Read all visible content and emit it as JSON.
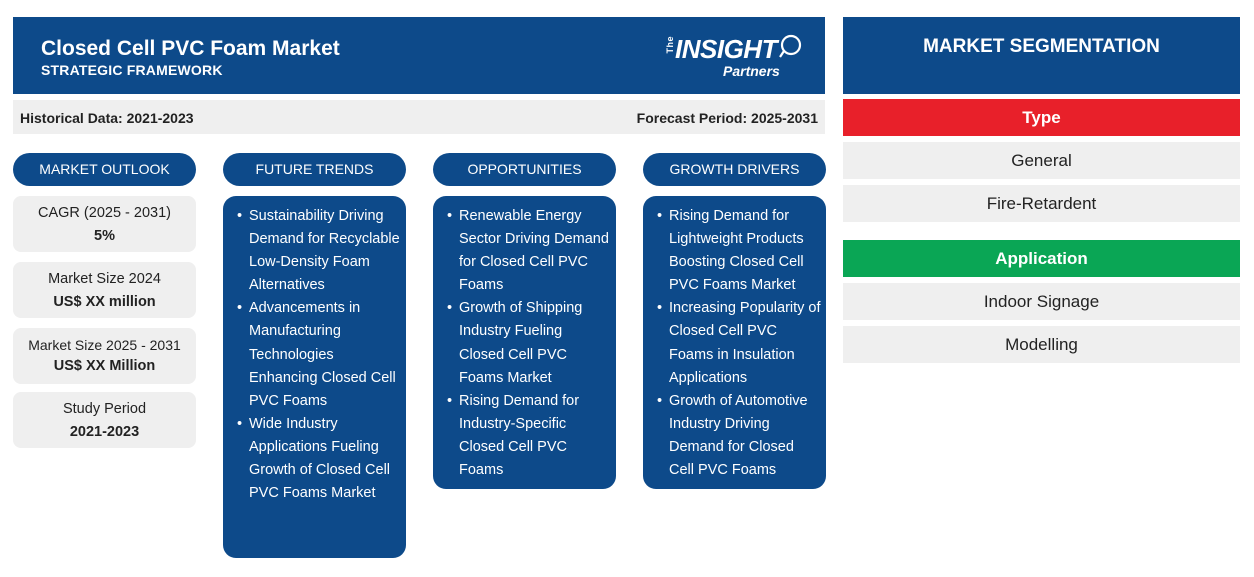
{
  "header": {
    "title": "Closed Cell PVC Foam Market",
    "subtitle": "STRATEGIC FRAMEWORK",
    "logo": {
      "the": "The",
      "insight": "INSIGHT",
      "partners": "Partners"
    }
  },
  "period": {
    "historical": "Historical Data: 2021-2023",
    "forecast": "Forecast Period: 2025-2031"
  },
  "columns": {
    "market_outlook": "MARKET OUTLOOK",
    "future_trends": "FUTURE TRENDS",
    "opportunities": "OPPORTUNITIES",
    "growth_drivers": "GROWTH DRIVERS"
  },
  "outlook": [
    {
      "label": "CAGR (2025 - 2031)",
      "value": "5%"
    },
    {
      "label": "Market Size 2024",
      "value": "US$ XX million"
    },
    {
      "label": "Market Size 2025 - 2031",
      "value": "US$ XX Million"
    },
    {
      "label": "Study Period",
      "value": "2021-2023"
    }
  ],
  "future_trends": [
    "Sustainability Driving Demand for Recyclable Low-Density Foam Alternatives",
    "Advancements in Manufacturing Technologies Enhancing Closed Cell PVC Foams",
    "Wide Industry Applications Fueling Growth of Closed Cell PVC Foams Market"
  ],
  "opportunities": [
    "Renewable Energy Sector Driving Demand for Closed Cell PVC Foams",
    "Growth of Shipping Industry Fueling Closed Cell PVC Foams Market",
    "Rising Demand for Industry-Specific Closed Cell PVC Foams"
  ],
  "growth_drivers": [
    "Rising Demand for Lightweight Products Boosting Closed Cell PVC Foams Market",
    "Increasing Popularity of Closed Cell PVC Foams in Insulation Applications",
    "Growth of Automotive Industry Driving Demand for Closed Cell PVC Foams"
  ],
  "segmentation": {
    "title": "MARKET SEGMENTATION",
    "type_label": "Type",
    "type_color": "#e8202a",
    "type_items": [
      "General",
      "Fire-Retardent"
    ],
    "application_label": "Application",
    "application_color": "#0aa655",
    "application_items": [
      "Indoor Signage",
      "Modelling"
    ]
  },
  "colors": {
    "primary": "#0d4a8a",
    "card_bg": "#efefef"
  }
}
